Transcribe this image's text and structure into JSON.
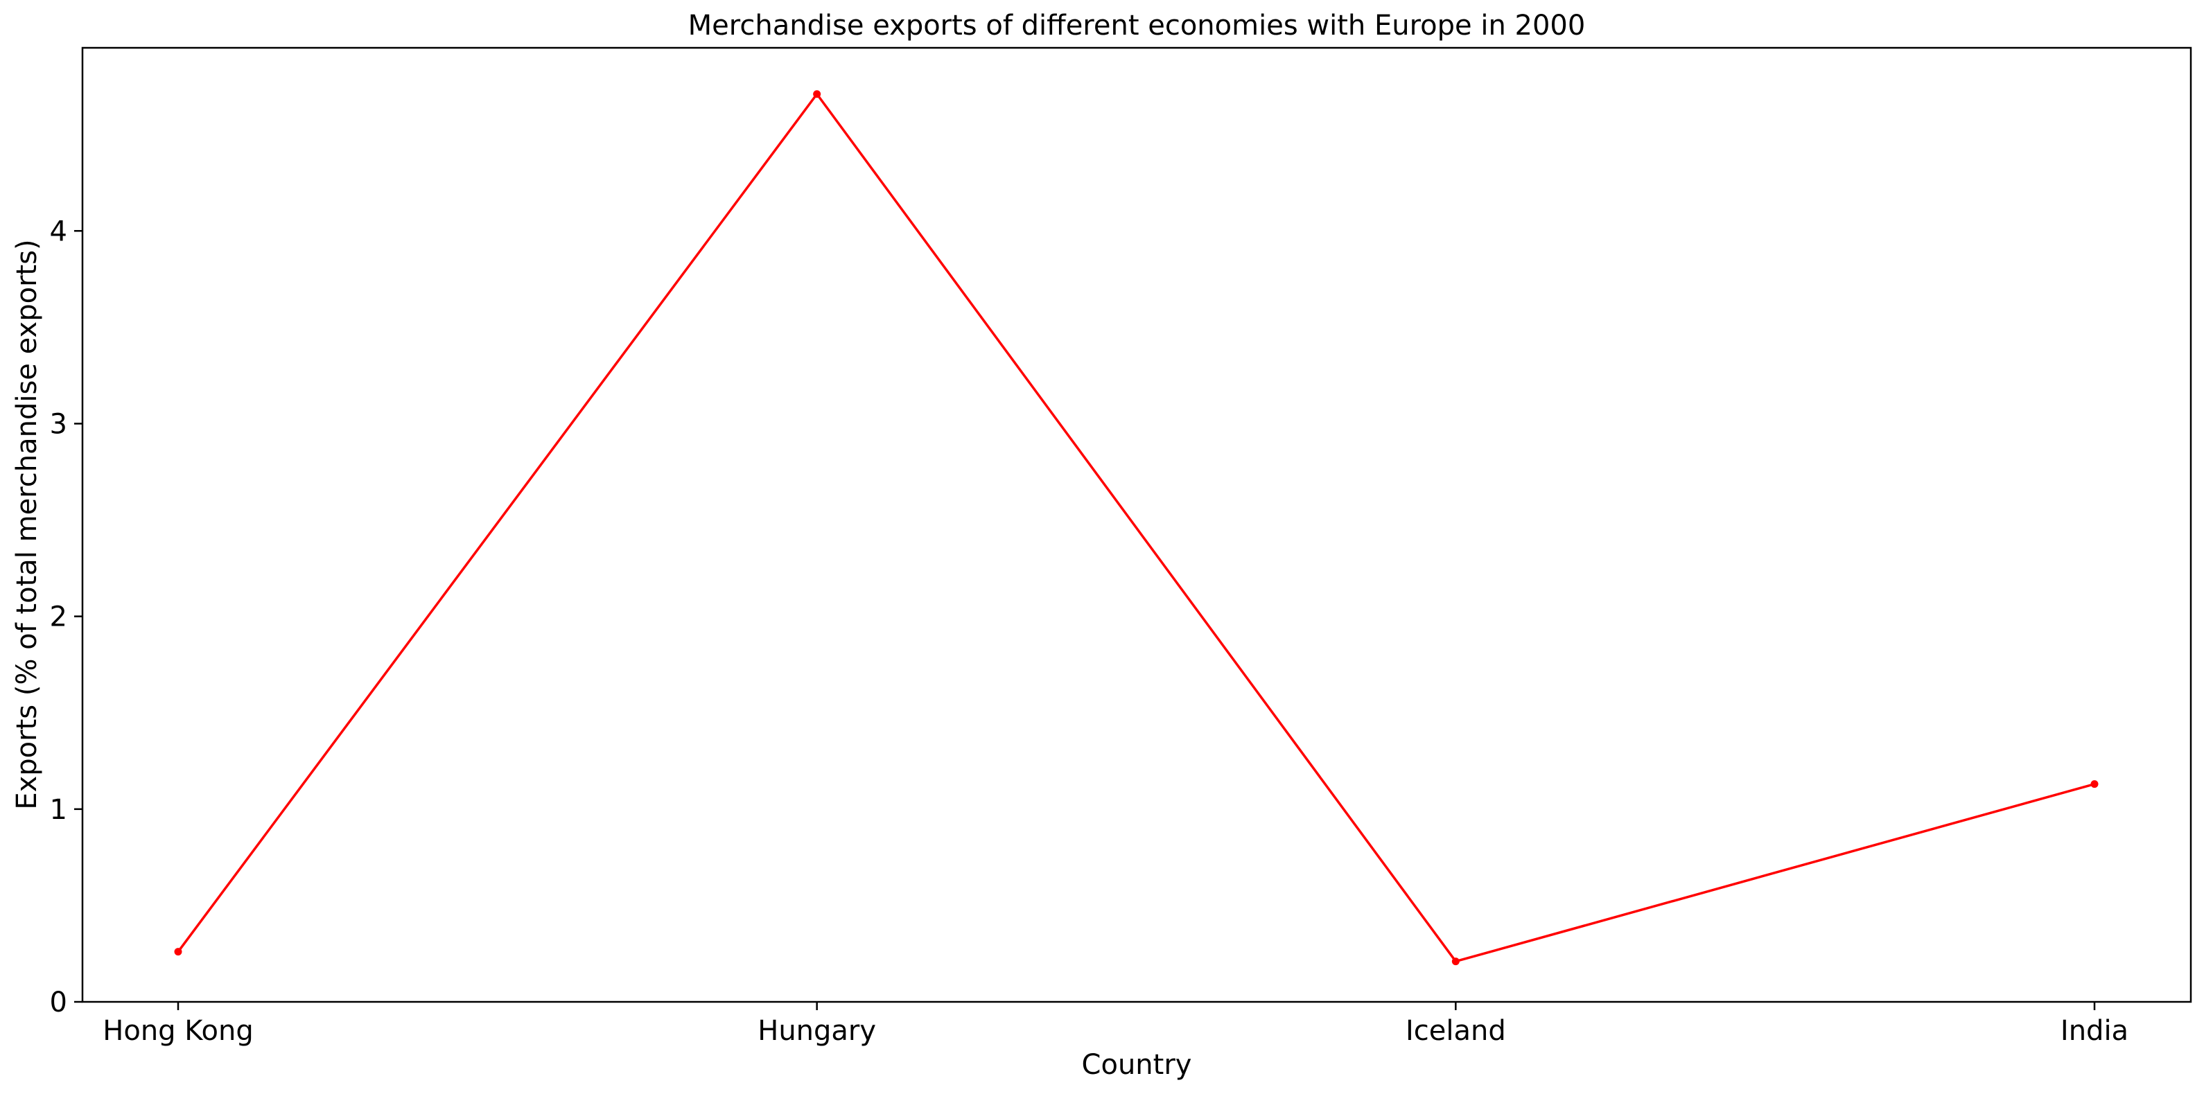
{
  "chart_data": {
    "type": "line",
    "title": "Merchandise exports of different economies with Europe in 2000",
    "xlabel": "Country",
    "ylabel": "Exports (% of total merchandise exports)",
    "categories": [
      "Hong Kong",
      "Hungary",
      "Iceland",
      "India"
    ],
    "series": [
      {
        "values": [
          0.26,
          4.71,
          0.21,
          1.13
        ],
        "color": "#ff0000"
      }
    ],
    "ylim": [
      0,
      4.95
    ],
    "yticks": [
      0,
      1,
      2,
      3,
      4
    ],
    "grid": false,
    "legend": "none"
  }
}
